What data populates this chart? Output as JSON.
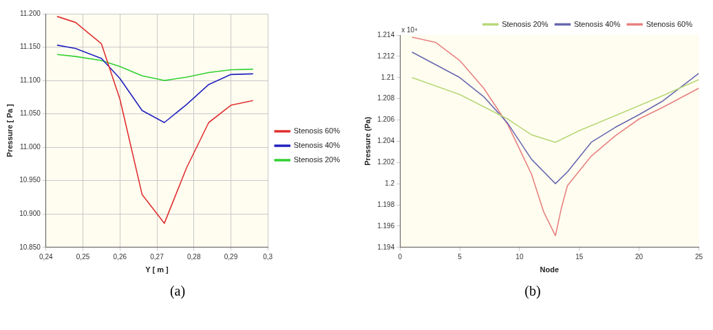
{
  "chart_data": [
    {
      "type": "line",
      "xlabel": "Y [ m ]",
      "ylabel": "Pressure [ Pa ]",
      "annotations": [
        "(a)"
      ],
      "x": [
        0.243,
        0.248,
        0.255,
        0.26,
        0.266,
        0.272,
        0.278,
        0.284,
        0.29,
        0.296
      ],
      "series": [
        {
          "name": "Stenosis 60%",
          "color": "#e03030",
          "values": [
            11196,
            11187,
            11155,
            11072,
            10929,
            10886,
            10969,
            11037,
            11063,
            11070
          ]
        },
        {
          "name": "Stenosis 40%",
          "color": "#2020c0",
          "values": [
            11153,
            11148,
            11133,
            11103,
            11055,
            11037,
            11064,
            11094,
            11109,
            11110
          ]
        },
        {
          "name": "Stenosis 20%",
          "color": "#30d030",
          "values": [
            11139,
            11136,
            11130,
            11121,
            11107,
            11100,
            11105,
            11112,
            11116,
            11117
          ]
        }
      ],
      "xlim": [
        0.24,
        0.3
      ],
      "xticks": [
        {
          "value": 0.24,
          "label": "0,24"
        },
        {
          "value": 0.25,
          "label": "0,25"
        },
        {
          "value": 0.26,
          "label": "0,26"
        },
        {
          "value": 0.27,
          "label": "0,27"
        },
        {
          "value": 0.28,
          "label": "0,28"
        },
        {
          "value": 0.29,
          "label": "0,29"
        },
        {
          "value": 0.3,
          "label": "0,3"
        }
      ],
      "ylim": [
        10850,
        11200
      ],
      "yticks": [
        {
          "value": 10850,
          "label": "10.850"
        },
        {
          "value": 10900,
          "label": "10.900"
        },
        {
          "value": 10950,
          "label": "10.950"
        },
        {
          "value": 11000,
          "label": "11.000"
        },
        {
          "value": 11050,
          "label": "11.050"
        },
        {
          "value": 11100,
          "label": "11.100"
        },
        {
          "value": 11150,
          "label": "11.150"
        },
        {
          "value": 11200,
          "label": "11.200"
        }
      ],
      "grid": true,
      "legend": "right",
      "marker": "none",
      "line_style": "solid"
    },
    {
      "type": "line",
      "xlabel": "Node",
      "ylabel": "Pressure (Pa)",
      "annotations": [
        "x 10⁴",
        "(b)"
      ],
      "series": [
        {
          "name": "Stenosis 20%",
          "color": "#b8d878",
          "x": [
            1,
            5,
            9,
            11,
            13,
            15,
            18,
            22,
            25
          ],
          "values": [
            1.21,
            1.2084,
            1.2061,
            1.2046,
            1.2039,
            1.205,
            1.2064,
            1.2083,
            1.2098
          ]
        },
        {
          "name": "Stenosis 40%",
          "color": "#6868b0",
          "x": [
            1,
            3,
            5,
            7,
            9,
            11,
            13,
            14,
            16,
            18,
            20,
            22,
            25
          ],
          "values": [
            1.2124,
            1.2112,
            1.21,
            1.2082,
            1.2057,
            1.2023,
            1.2,
            1.2011,
            1.2039,
            1.2053,
            1.2065,
            1.2078,
            1.2104
          ]
        },
        {
          "name": "Stenosis 60%",
          "color": "#e88080",
          "x": [
            1,
            3,
            5,
            7,
            9,
            11,
            12,
            13,
            13.5,
            14,
            16,
            18,
            20,
            22,
            25
          ],
          "values": [
            1.2138,
            1.2133,
            1.2116,
            1.209,
            1.2056,
            1.2009,
            1.1974,
            1.1951,
            1.1977,
            1.1998,
            1.2026,
            1.2045,
            1.2061,
            1.2072,
            1.209
          ]
        }
      ],
      "xlim": [
        0,
        25
      ],
      "xticks": [
        0,
        5,
        10,
        15,
        20,
        25
      ],
      "ylim": [
        1.194,
        1.214
      ],
      "yticks": [
        1.194,
        1.196,
        1.198,
        1.2,
        1.202,
        1.204,
        1.206,
        1.208,
        1.21,
        1.212,
        1.214
      ],
      "grid": false,
      "legend": "top right",
      "marker": "none",
      "line_style": "solid"
    }
  ]
}
